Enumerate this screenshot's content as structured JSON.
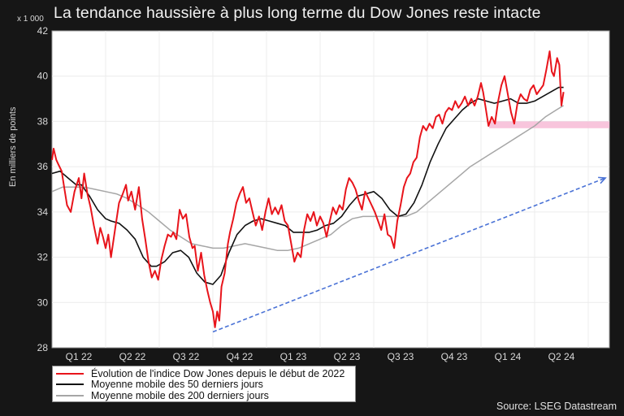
{
  "title": "La tendance haussière à plus long terme du Dow Jones reste intacte",
  "unit_label": "x 1 000",
  "source": "Source: LSEG Datastream",
  "colors": {
    "background": "#161616",
    "plot_bg": "#ffffff",
    "grid": "#ececec",
    "dow": "#e8141b",
    "ma50": "#111111",
    "ma200": "#a6a6a6",
    "trend_arrow": "#4a72d6",
    "support_band": "#f7bfd8"
  },
  "legend": {
    "items": [
      {
        "label": "Évolution de l'indice Dow Jones depuis le début de 2022",
        "color": "#e8141b"
      },
      {
        "label": "Moyenne mobile des 50 derniers jours",
        "color": "#111111"
      },
      {
        "label": "Moyenne mobile des 200 derniers jours",
        "color": "#a6a6a6"
      }
    ]
  },
  "chart_data": {
    "type": "line",
    "title": "La tendance haussière à plus long terme du Dow Jones reste intacte",
    "xlabel": "",
    "ylabel": "En milliers de points",
    "ylim": [
      28,
      42
    ],
    "yticks": [
      28,
      30,
      32,
      34,
      36,
      38,
      40,
      42
    ],
    "categories": [
      "Q1 22",
      "Q2 22",
      "Q3 22",
      "Q4 22",
      "Q1 23",
      "Q2 23",
      "Q3 23",
      "Q4 23",
      "Q1 24",
      "Q2 24"
    ],
    "x_unit": "quarter index (0 = start of Q1 2022)",
    "grid": true,
    "legend_position": "bottom-left, below plot",
    "series": [
      {
        "name": "Évolution de l'indice Dow Jones depuis le début de 2022",
        "points": [
          [
            0.0,
            36.3
          ],
          [
            0.03,
            36.8
          ],
          [
            0.08,
            36.3
          ],
          [
            0.12,
            36.1
          ],
          [
            0.18,
            35.8
          ],
          [
            0.22,
            35.2
          ],
          [
            0.28,
            34.3
          ],
          [
            0.35,
            34.0
          ],
          [
            0.42,
            34.9
          ],
          [
            0.5,
            35.5
          ],
          [
            0.55,
            34.6
          ],
          [
            0.6,
            35.7
          ],
          [
            0.66,
            34.8
          ],
          [
            0.72,
            34.2
          ],
          [
            0.78,
            33.4
          ],
          [
            0.85,
            32.6
          ],
          [
            0.9,
            33.3
          ],
          [
            0.95,
            32.9
          ],
          [
            1.0,
            32.4
          ],
          [
            1.05,
            33.0
          ],
          [
            1.1,
            32.0
          ],
          [
            1.18,
            33.3
          ],
          [
            1.25,
            34.4
          ],
          [
            1.32,
            34.8
          ],
          [
            1.38,
            35.2
          ],
          [
            1.42,
            34.5
          ],
          [
            1.48,
            34.9
          ],
          [
            1.55,
            34.1
          ],
          [
            1.62,
            35.1
          ],
          [
            1.68,
            33.7
          ],
          [
            1.74,
            32.8
          ],
          [
            1.8,
            31.8
          ],
          [
            1.86,
            31.1
          ],
          [
            1.92,
            31.4
          ],
          [
            1.98,
            31.0
          ],
          [
            2.04,
            31.9
          ],
          [
            2.1,
            32.5
          ],
          [
            2.16,
            33.0
          ],
          [
            2.22,
            32.9
          ],
          [
            2.26,
            33.1
          ],
          [
            2.32,
            32.8
          ],
          [
            2.38,
            34.1
          ],
          [
            2.44,
            33.7
          ],
          [
            2.5,
            33.9
          ],
          [
            2.56,
            32.9
          ],
          [
            2.62,
            32.4
          ],
          [
            2.66,
            32.5
          ],
          [
            2.72,
            31.4
          ],
          [
            2.78,
            32.2
          ],
          [
            2.84,
            31.2
          ],
          [
            2.9,
            30.5
          ],
          [
            2.95,
            30.0
          ],
          [
            3.0,
            29.6
          ],
          [
            3.04,
            28.9
          ],
          [
            3.08,
            29.6
          ],
          [
            3.12,
            29.2
          ],
          [
            3.16,
            30.7
          ],
          [
            3.22,
            31.3
          ],
          [
            3.28,
            32.6
          ],
          [
            3.32,
            33.1
          ],
          [
            3.38,
            33.7
          ],
          [
            3.44,
            34.4
          ],
          [
            3.5,
            34.8
          ],
          [
            3.56,
            35.1
          ],
          [
            3.62,
            34.4
          ],
          [
            3.68,
            34.6
          ],
          [
            3.74,
            34.0
          ],
          [
            3.8,
            33.4
          ],
          [
            3.86,
            33.8
          ],
          [
            3.92,
            33.2
          ],
          [
            3.98,
            34.0
          ],
          [
            4.04,
            34.6
          ],
          [
            4.1,
            33.9
          ],
          [
            4.16,
            34.2
          ],
          [
            4.22,
            33.9
          ],
          [
            4.28,
            34.3
          ],
          [
            4.34,
            33.6
          ],
          [
            4.4,
            33.4
          ],
          [
            4.46,
            32.6
          ],
          [
            4.52,
            31.8
          ],
          [
            4.58,
            32.2
          ],
          [
            4.64,
            32.0
          ],
          [
            4.7,
            33.2
          ],
          [
            4.76,
            33.9
          ],
          [
            4.82,
            33.6
          ],
          [
            4.88,
            34.0
          ],
          [
            4.94,
            33.4
          ],
          [
            5.0,
            33.8
          ],
          [
            5.06,
            33.5
          ],
          [
            5.12,
            32.9
          ],
          [
            5.18,
            33.6
          ],
          [
            5.24,
            34.2
          ],
          [
            5.3,
            33.9
          ],
          [
            5.36,
            34.3
          ],
          [
            5.42,
            34.1
          ],
          [
            5.48,
            35.0
          ],
          [
            5.54,
            35.5
          ],
          [
            5.6,
            35.3
          ],
          [
            5.66,
            35.0
          ],
          [
            5.72,
            34.5
          ],
          [
            5.78,
            34.1
          ],
          [
            5.84,
            34.9
          ],
          [
            5.9,
            34.6
          ],
          [
            5.96,
            34.3
          ],
          [
            6.02,
            34.0
          ],
          [
            6.08,
            33.6
          ],
          [
            6.14,
            33.2
          ],
          [
            6.2,
            33.9
          ],
          [
            6.26,
            33.0
          ],
          [
            6.32,
            32.9
          ],
          [
            6.38,
            32.4
          ],
          [
            6.44,
            33.6
          ],
          [
            6.5,
            34.3
          ],
          [
            6.56,
            35.1
          ],
          [
            6.62,
            35.5
          ],
          [
            6.68,
            35.7
          ],
          [
            6.74,
            36.2
          ],
          [
            6.8,
            36.4
          ],
          [
            6.86,
            37.3
          ],
          [
            6.92,
            37.8
          ],
          [
            6.98,
            37.6
          ],
          [
            7.04,
            37.9
          ],
          [
            7.1,
            37.7
          ],
          [
            7.16,
            38.2
          ],
          [
            7.22,
            38.3
          ],
          [
            7.28,
            37.9
          ],
          [
            7.34,
            38.4
          ],
          [
            7.4,
            38.6
          ],
          [
            7.46,
            38.5
          ],
          [
            7.52,
            38.9
          ],
          [
            7.58,
            38.6
          ],
          [
            7.64,
            38.8
          ],
          [
            7.7,
            39.1
          ],
          [
            7.76,
            38.7
          ],
          [
            7.82,
            39.0
          ],
          [
            7.88,
            38.7
          ],
          [
            7.94,
            39.1
          ],
          [
            8.0,
            39.7
          ],
          [
            8.04,
            39.3
          ],
          [
            8.08,
            38.7
          ],
          [
            8.14,
            37.8
          ],
          [
            8.2,
            38.2
          ],
          [
            8.26,
            37.9
          ],
          [
            8.32,
            38.9
          ],
          [
            8.38,
            39.6
          ],
          [
            8.44,
            40.0
          ],
          [
            8.5,
            39.2
          ],
          [
            8.56,
            38.4
          ],
          [
            8.62,
            37.9
          ],
          [
            8.68,
            38.8
          ],
          [
            8.74,
            39.2
          ],
          [
            8.8,
            39.0
          ],
          [
            8.86,
            38.9
          ],
          [
            8.92,
            39.4
          ],
          [
            8.98,
            39.6
          ],
          [
            9.04,
            39.2
          ],
          [
            9.1,
            39.4
          ],
          [
            9.16,
            39.6
          ],
          [
            9.22,
            40.3
          ],
          [
            9.28,
            41.1
          ],
          [
            9.32,
            40.2
          ],
          [
            9.36,
            40.0
          ],
          [
            9.42,
            40.8
          ],
          [
            9.46,
            40.5
          ],
          [
            9.5,
            38.7
          ],
          [
            9.54,
            39.3
          ]
        ]
      },
      {
        "name": "Moyenne mobile des 50 derniers jours",
        "points": [
          [
            0.0,
            35.7
          ],
          [
            0.15,
            35.8
          ],
          [
            0.3,
            35.5
          ],
          [
            0.45,
            35.2
          ],
          [
            0.55,
            35.2
          ],
          [
            0.7,
            34.7
          ],
          [
            0.85,
            34.1
          ],
          [
            1.0,
            33.7
          ],
          [
            1.1,
            33.6
          ],
          [
            1.25,
            33.5
          ],
          [
            1.4,
            33.2
          ],
          [
            1.55,
            32.8
          ],
          [
            1.7,
            32.0
          ],
          [
            1.85,
            31.6
          ],
          [
            1.95,
            31.6
          ],
          [
            2.1,
            31.8
          ],
          [
            2.25,
            32.2
          ],
          [
            2.4,
            32.3
          ],
          [
            2.55,
            32.0
          ],
          [
            2.7,
            31.3
          ],
          [
            2.85,
            30.9
          ],
          [
            3.0,
            30.8
          ],
          [
            3.15,
            31.2
          ],
          [
            3.3,
            32.2
          ],
          [
            3.45,
            33.0
          ],
          [
            3.6,
            33.4
          ],
          [
            3.75,
            33.6
          ],
          [
            3.9,
            33.7
          ],
          [
            4.05,
            33.6
          ],
          [
            4.2,
            33.5
          ],
          [
            4.35,
            33.4
          ],
          [
            4.5,
            33.1
          ],
          [
            4.65,
            33.1
          ],
          [
            4.8,
            33.1
          ],
          [
            4.95,
            33.2
          ],
          [
            5.1,
            33.4
          ],
          [
            5.25,
            33.5
          ],
          [
            5.4,
            33.8
          ],
          [
            5.55,
            34.3
          ],
          [
            5.7,
            34.7
          ],
          [
            5.85,
            34.8
          ],
          [
            6.0,
            34.9
          ],
          [
            6.15,
            34.6
          ],
          [
            6.3,
            34.1
          ],
          [
            6.45,
            33.8
          ],
          [
            6.6,
            33.9
          ],
          [
            6.75,
            34.4
          ],
          [
            6.9,
            35.2
          ],
          [
            7.05,
            36.2
          ],
          [
            7.2,
            37.0
          ],
          [
            7.35,
            37.7
          ],
          [
            7.5,
            38.1
          ],
          [
            7.65,
            38.5
          ],
          [
            7.8,
            38.8
          ],
          [
            7.95,
            39.0
          ],
          [
            8.1,
            38.9
          ],
          [
            8.25,
            38.8
          ],
          [
            8.4,
            38.9
          ],
          [
            8.55,
            39.0
          ],
          [
            8.7,
            38.8
          ],
          [
            8.85,
            38.8
          ],
          [
            9.0,
            38.9
          ],
          [
            9.15,
            39.1
          ],
          [
            9.3,
            39.3
          ],
          [
            9.45,
            39.5
          ],
          [
            9.54,
            39.5
          ]
        ]
      },
      {
        "name": "Moyenne mobile des 200 derniers jours",
        "points": [
          [
            0.0,
            34.9
          ],
          [
            0.2,
            35.1
          ],
          [
            0.4,
            35.1
          ],
          [
            0.6,
            35.1
          ],
          [
            0.8,
            35.0
          ],
          [
            1.0,
            34.9
          ],
          [
            1.2,
            34.8
          ],
          [
            1.4,
            34.6
          ],
          [
            1.6,
            34.3
          ],
          [
            1.8,
            34.0
          ],
          [
            2.0,
            33.6
          ],
          [
            2.2,
            33.2
          ],
          [
            2.4,
            32.9
          ],
          [
            2.6,
            32.6
          ],
          [
            2.8,
            32.5
          ],
          [
            3.0,
            32.4
          ],
          [
            3.2,
            32.4
          ],
          [
            3.4,
            32.5
          ],
          [
            3.6,
            32.6
          ],
          [
            3.8,
            32.5
          ],
          [
            4.0,
            32.4
          ],
          [
            4.2,
            32.3
          ],
          [
            4.4,
            32.3
          ],
          [
            4.6,
            32.4
          ],
          [
            4.8,
            32.6
          ],
          [
            5.0,
            32.8
          ],
          [
            5.2,
            33.0
          ],
          [
            5.4,
            33.4
          ],
          [
            5.6,
            33.7
          ],
          [
            5.8,
            33.8
          ],
          [
            6.0,
            33.8
          ],
          [
            6.2,
            33.8
          ],
          [
            6.4,
            33.8
          ],
          [
            6.6,
            33.8
          ],
          [
            6.8,
            34.0
          ],
          [
            7.0,
            34.4
          ],
          [
            7.2,
            34.8
          ],
          [
            7.4,
            35.2
          ],
          [
            7.6,
            35.6
          ],
          [
            7.8,
            36.0
          ],
          [
            8.0,
            36.3
          ],
          [
            8.2,
            36.6
          ],
          [
            8.4,
            36.9
          ],
          [
            8.6,
            37.2
          ],
          [
            8.8,
            37.5
          ],
          [
            9.0,
            37.8
          ],
          [
            9.2,
            38.2
          ],
          [
            9.4,
            38.5
          ],
          [
            9.54,
            38.7
          ]
        ]
      }
    ],
    "annotations": {
      "trend_arrow": {
        "from": [
          3.0,
          28.7
        ],
        "to": [
          10.35,
          35.5
        ],
        "style": "dashed",
        "color": "#4a72d6"
      },
      "support_band": {
        "x_from": 8.15,
        "x_to": 10.4,
        "y_from": 37.7,
        "y_to": 38.0,
        "color": "#f7bfd8"
      }
    }
  }
}
